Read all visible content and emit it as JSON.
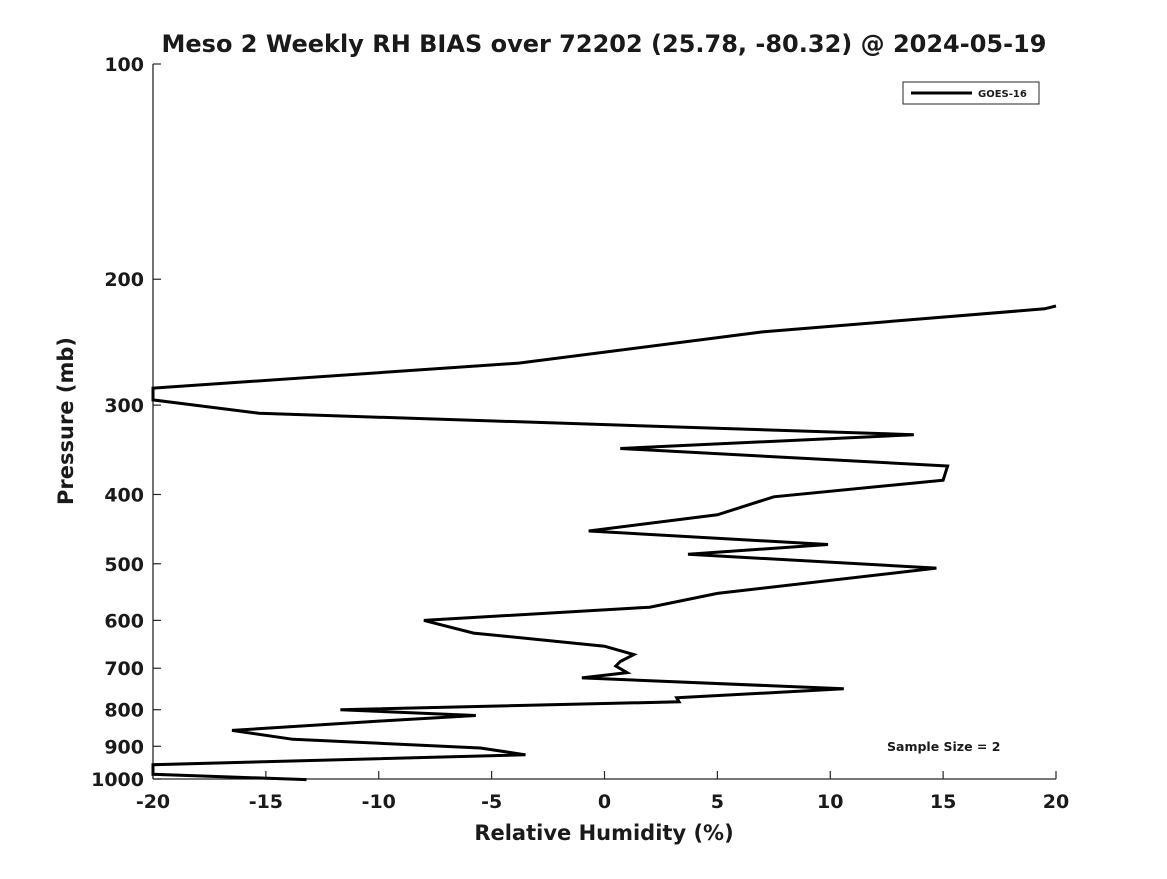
{
  "chart_data": {
    "type": "line",
    "title": "Meso 2 Weekly RH BIAS over 72202 (25.78, -80.32) @ 2024-05-19",
    "xlabel": "Relative Humidity (%)",
    "ylabel": "Pressure (mb)",
    "xlim": [
      -20,
      20
    ],
    "ylim": [
      1000,
      100
    ],
    "y_scale": "log",
    "x_ticks": [
      "-20",
      "-15",
      "-10",
      "-5",
      "0",
      "5",
      "10",
      "15",
      "20"
    ],
    "y_ticks": [
      "100",
      "200",
      "300",
      "400",
      "500",
      "600",
      "700",
      "800",
      "900",
      "1000"
    ],
    "grid": false,
    "legend_position": "top-right",
    "annotation": "Sample Size = 2",
    "series": [
      {
        "name": "GOES-16",
        "color": "#000000",
        "points": [
          {
            "x": 20.0,
            "p": 218
          },
          {
            "x": 19.5,
            "p": 220
          },
          {
            "x": 7.0,
            "p": 237
          },
          {
            "x": -3.8,
            "p": 262
          },
          {
            "x": -20.0,
            "p": 284
          },
          {
            "x": -20.0,
            "p": 295
          },
          {
            "x": -15.3,
            "p": 308
          },
          {
            "x": 13.7,
            "p": 330
          },
          {
            "x": 0.7,
            "p": 345
          },
          {
            "x": 15.2,
            "p": 365
          },
          {
            "x": 15.0,
            "p": 382
          },
          {
            "x": 7.5,
            "p": 403
          },
          {
            "x": 5.0,
            "p": 427
          },
          {
            "x": -0.7,
            "p": 450
          },
          {
            "x": 9.9,
            "p": 470
          },
          {
            "x": 3.7,
            "p": 485
          },
          {
            "x": 14.7,
            "p": 507
          },
          {
            "x": 5.0,
            "p": 550
          },
          {
            "x": 2.0,
            "p": 575
          },
          {
            "x": -8.0,
            "p": 600
          },
          {
            "x": -5.8,
            "p": 625
          },
          {
            "x": 0.0,
            "p": 652
          },
          {
            "x": 1.3,
            "p": 670
          },
          {
            "x": 0.7,
            "p": 685
          },
          {
            "x": 0.5,
            "p": 695
          },
          {
            "x": 1.0,
            "p": 710
          },
          {
            "x": -1.0,
            "p": 722
          },
          {
            "x": 10.6,
            "p": 748
          },
          {
            "x": 3.2,
            "p": 770
          },
          {
            "x": 3.3,
            "p": 780
          },
          {
            "x": -11.7,
            "p": 800
          },
          {
            "x": -5.7,
            "p": 815
          },
          {
            "x": -10.0,
            "p": 830
          },
          {
            "x": -16.5,
            "p": 855
          },
          {
            "x": -13.8,
            "p": 880
          },
          {
            "x": -5.5,
            "p": 905
          },
          {
            "x": -3.5,
            "p": 925
          },
          {
            "x": -20.0,
            "p": 955
          },
          {
            "x": -20.0,
            "p": 985
          },
          {
            "x": -13.2,
            "p": 1002
          }
        ]
      }
    ]
  }
}
